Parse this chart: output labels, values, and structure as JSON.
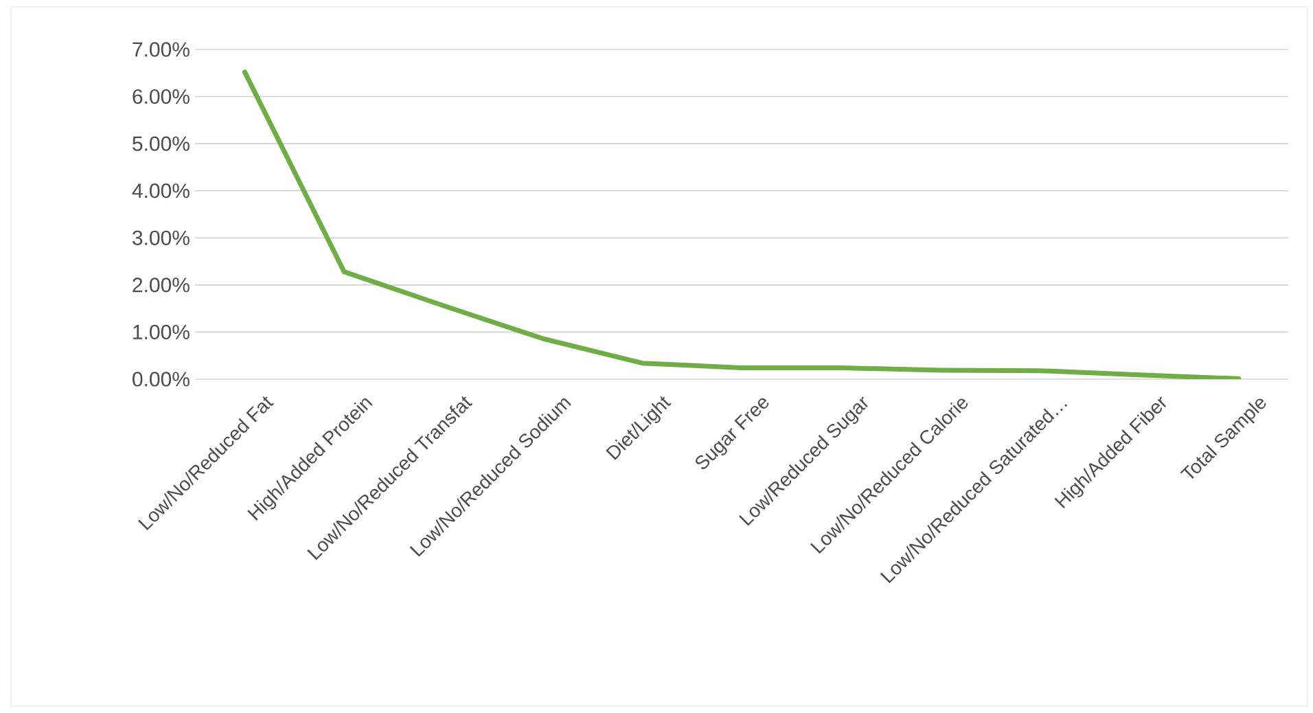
{
  "chart_data": {
    "type": "line",
    "categories": [
      "Low/No/Reduced Fat",
      "High/Added Protein",
      "Low/No/Reduced Transfat",
      "Low/No/Reduced Sodium",
      "Diet/Light",
      "Sugar Free",
      "Low/Reduced Sugar",
      "Low/No/Reduced Calorie",
      "Low/No/Reduced Saturated…",
      "High/Added Fiber",
      "Total Sample"
    ],
    "values": [
      6.52,
      2.28,
      1.56,
      0.86,
      0.34,
      0.24,
      0.24,
      0.19,
      0.18,
      0.09,
      0.01
    ],
    "color": "#70ad47",
    "ylim": [
      0,
      7
    ],
    "yticks": [
      {
        "value": 0,
        "label": "0.00%"
      },
      {
        "value": 1,
        "label": "1.00%"
      },
      {
        "value": 2,
        "label": "2.00%"
      },
      {
        "value": 3,
        "label": "3.00%"
      },
      {
        "value": 4,
        "label": "4.00%"
      },
      {
        "value": 5,
        "label": "5.00%"
      },
      {
        "value": 6,
        "label": "6.00%"
      },
      {
        "value": 7,
        "label": "7.00%"
      }
    ],
    "grid": "y",
    "marker": "none",
    "line_style": "solid"
  }
}
